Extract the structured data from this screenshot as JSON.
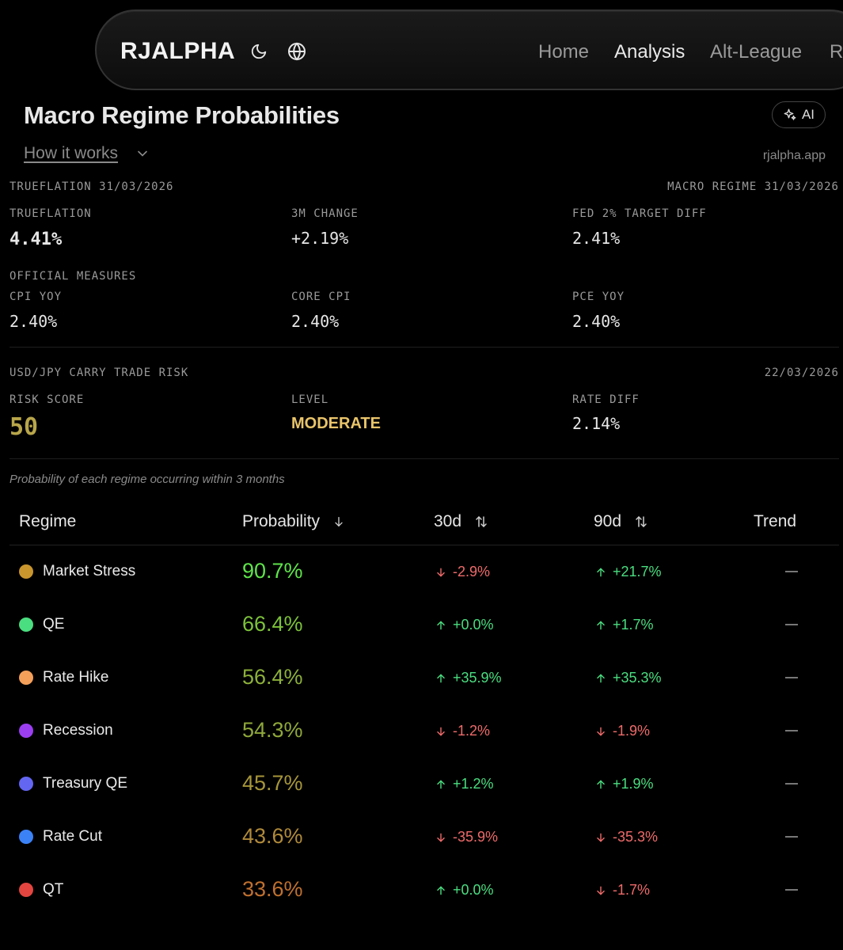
{
  "nav": {
    "brand": "RJALPHA",
    "theme_icon": "moon-icon",
    "language_icon": "globe-icon",
    "links": [
      "Home",
      "Analysis",
      "Alt-League",
      "Ri"
    ],
    "active": "Analysis"
  },
  "header": {
    "title": "Macro Regime Probabilities",
    "ai_label": "AI",
    "how_it_works": "How it works",
    "site": "rjalpha.app"
  },
  "truflation": {
    "section_label": "TRUEFLATION 31/03/2026",
    "regime_label": "MACRO REGIME 31/03/2026",
    "trueflation_label": "TRUEFLATION",
    "trueflation_value": "4.41%",
    "change_label": "3M CHANGE",
    "change_value": "+2.19%",
    "target_label": "FED 2% TARGET DIFF",
    "target_value": "2.41%"
  },
  "official": {
    "section_label": "OFFICIAL MEASURES",
    "cpi_label": "CPI YOY",
    "cpi_value": "2.40%",
    "core_label": "CORE CPI",
    "core_value": "2.40%",
    "pce_label": "PCE YOY",
    "pce_value": "2.40%"
  },
  "carry": {
    "section_label": "USD/JPY CARRY TRADE RISK",
    "date": "22/03/2026",
    "risk_label": "RISK SCORE",
    "risk_value": "50",
    "level_label": "LEVEL",
    "level_value": "MODERATE",
    "rate_label": "RATE DIFF",
    "rate_value": "2.14%"
  },
  "note": "Probability of each regime occurring within 3 months",
  "table": {
    "headers": {
      "regime": "Regime",
      "probability": "Probability",
      "d30": "30d",
      "d90": "90d",
      "trend": "Trend"
    },
    "rows": [
      {
        "name": "Market Stress",
        "dot": "#c9962e",
        "prob": "90.7%",
        "prob_color": "#5ee34a",
        "d30": "-2.9%",
        "d30_dir": "down",
        "d90": "+21.7%",
        "d90_dir": "up"
      },
      {
        "name": "QE",
        "dot": "#4ade80",
        "prob": "66.4%",
        "prob_color": "#7cc23a",
        "d30": "+0.0%",
        "d30_dir": "up",
        "d90": "+1.7%",
        "d90_dir": "up"
      },
      {
        "name": "Rate Hike",
        "dot": "#f5a05a",
        "prob": "56.4%",
        "prob_color": "#8cb03a",
        "d30": "+35.9%",
        "d30_dir": "up",
        "d90": "+35.3%",
        "d90_dir": "up"
      },
      {
        "name": "Recession",
        "dot": "#9b3ef0",
        "prob": "54.3%",
        "prob_color": "#8fa83a",
        "d30": "-1.2%",
        "d30_dir": "down",
        "d90": "-1.9%",
        "d90_dir": "down"
      },
      {
        "name": "Treasury QE",
        "dot": "#6366f1",
        "prob": "45.7%",
        "prob_color": "#a7963a",
        "d30": "+1.2%",
        "d30_dir": "up",
        "d90": "+1.9%",
        "d90_dir": "up"
      },
      {
        "name": "Rate Cut",
        "dot": "#3b82f6",
        "prob": "43.6%",
        "prob_color": "#b08a3a",
        "d30": "-35.9%",
        "d30_dir": "down",
        "d90": "-35.3%",
        "d90_dir": "down"
      },
      {
        "name": "QT",
        "dot": "#e2453f",
        "prob": "33.6%",
        "prob_color": "#c0702f",
        "d30": "+0.0%",
        "d30_dir": "up",
        "d90": "-1.7%",
        "d90_dir": "down"
      }
    ]
  }
}
